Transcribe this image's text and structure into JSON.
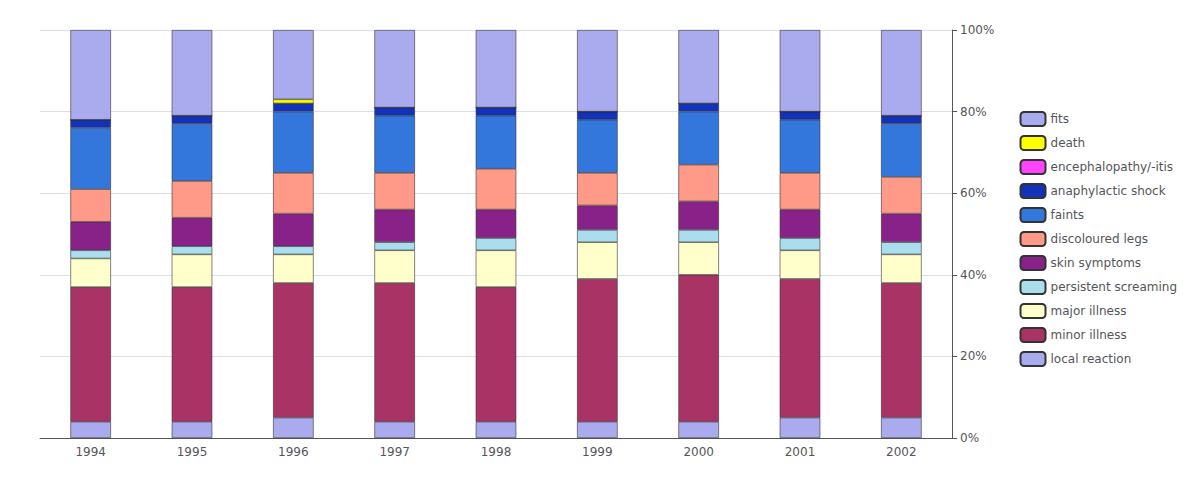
{
  "chart_data": {
    "type": "bar",
    "stacked": true,
    "categories": [
      "1994",
      "1995",
      "1996",
      "1997",
      "1998",
      "1999",
      "2000",
      "2001",
      "2002"
    ],
    "series": [
      {
        "name": "local reaction",
        "color": "#aaaaee",
        "values": [
          4,
          4,
          5,
          4,
          4,
          4,
          4,
          5,
          5
        ]
      },
      {
        "name": "minor illness",
        "color": "#aa3366",
        "values": [
          33,
          33,
          33,
          34,
          33,
          35,
          36,
          34,
          33
        ]
      },
      {
        "name": "major illness",
        "color": "#ffffcc",
        "values": [
          7,
          8,
          7,
          8,
          9,
          9,
          8,
          7,
          7
        ]
      },
      {
        "name": "persistent screaming",
        "color": "#aaddee",
        "values": [
          2,
          2,
          2,
          2,
          3,
          3,
          3,
          3,
          3
        ]
      },
      {
        "name": "skin symptoms",
        "color": "#882288",
        "values": [
          7,
          7,
          8,
          8,
          7,
          6,
          7,
          7,
          7
        ]
      },
      {
        "name": "discoloured legs",
        "color": "#ff9988",
        "values": [
          8,
          9,
          10,
          9,
          10,
          8,
          9,
          9,
          9
        ]
      },
      {
        "name": "faints",
        "color": "#3377dd",
        "values": [
          15,
          14,
          15,
          14,
          13,
          13,
          13,
          13,
          13
        ]
      },
      {
        "name": "anaphylactic shock",
        "color": "#1133bb",
        "values": [
          2,
          2,
          2,
          2,
          2,
          2,
          2,
          2,
          2
        ]
      },
      {
        "name": "encephalopathy/-itis",
        "color": "#ff44ff",
        "values": [
          0,
          0,
          0,
          0,
          0,
          0,
          0,
          0,
          0
        ]
      },
      {
        "name": "death",
        "color": "#ffff00",
        "values": [
          0,
          0,
          1,
          0,
          0,
          0,
          0,
          0,
          0
        ]
      },
      {
        "name": "fits",
        "color": "#aaaaee",
        "values": [
          22,
          21,
          17,
          19,
          19,
          20,
          18,
          20,
          21
        ]
      }
    ],
    "ylim": [
      0,
      100
    ],
    "yticks": [
      {
        "value": 0,
        "label": "0%"
      },
      {
        "value": 20,
        "label": "20%"
      },
      {
        "value": 40,
        "label": "40%"
      },
      {
        "value": 60,
        "label": "60%"
      },
      {
        "value": 80,
        "label": "80%"
      },
      {
        "value": 100,
        "label": "100%"
      }
    ],
    "grid": true,
    "legend": "right"
  }
}
